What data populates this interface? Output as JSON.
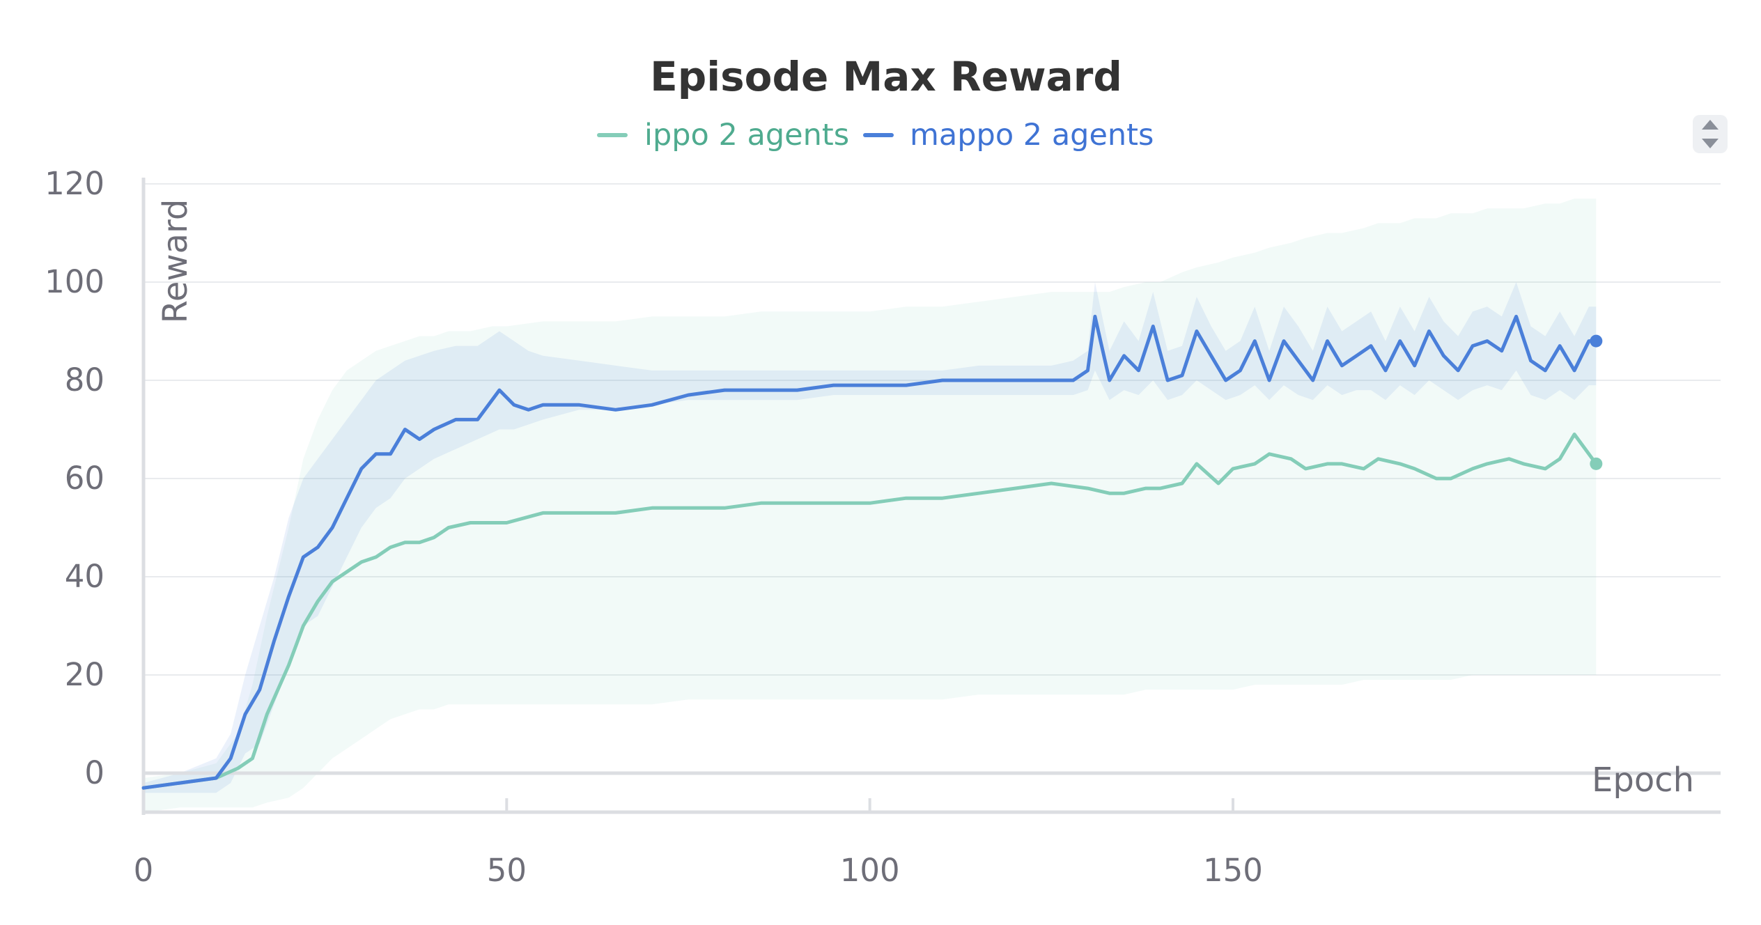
{
  "chart_data": {
    "type": "line",
    "title": "Episode Max Reward",
    "xlabel": "Epoch",
    "ylabel": "Reward",
    "xlim": [
      0,
      200
    ],
    "ylim": [
      -8,
      122
    ],
    "x_ticks": [
      0,
      50,
      100,
      150
    ],
    "y_ticks": [
      0,
      20,
      40,
      60,
      80,
      100,
      120
    ],
    "legend_position": "top-center",
    "grid": true,
    "colors": {
      "ippo": "#84cdb8",
      "mappo": "#4a7fd9",
      "ippo_legend_text": "#4fab8f",
      "mappo_legend_text": "#3f73d4"
    },
    "series": [
      {
        "name": "ippo 2 agents",
        "x": [
          0,
          5,
          10,
          13,
          15,
          17,
          20,
          22,
          24,
          26,
          28,
          30,
          32,
          34,
          36,
          38,
          40,
          42,
          45,
          48,
          50,
          55,
          60,
          65,
          70,
          75,
          80,
          85,
          90,
          95,
          100,
          105,
          110,
          115,
          120,
          125,
          130,
          133,
          135,
          138,
          140,
          143,
          145,
          148,
          150,
          153,
          155,
          158,
          160,
          163,
          165,
          168,
          170,
          173,
          175,
          178,
          180,
          183,
          185,
          188,
          190,
          193,
          195,
          197,
          200
        ],
        "y": [
          -3,
          -2,
          -1,
          1,
          3,
          12,
          22,
          30,
          35,
          39,
          41,
          43,
          44,
          46,
          47,
          47,
          48,
          50,
          51,
          51,
          51,
          53,
          53,
          53,
          54,
          54,
          54,
          55,
          55,
          55,
          55,
          56,
          56,
          57,
          58,
          59,
          58,
          57,
          57,
          58,
          58,
          59,
          63,
          59,
          62,
          63,
          65,
          64,
          62,
          63,
          63,
          62,
          64,
          63,
          62,
          60,
          60,
          62,
          63,
          64,
          63,
          62,
          64,
          69,
          63
        ],
        "upper": [
          -1,
          0,
          2,
          8,
          18,
          32,
          50,
          64,
          72,
          78,
          82,
          84,
          86,
          87,
          88,
          89,
          89,
          90,
          90,
          91,
          91,
          92,
          92,
          92,
          93,
          93,
          93,
          94,
          94,
          94,
          94,
          95,
          95,
          96,
          97,
          98,
          98,
          98,
          99,
          100,
          100,
          102,
          103,
          104,
          105,
          106,
          107,
          108,
          109,
          110,
          110,
          111,
          112,
          112,
          113,
          113,
          114,
          114,
          115,
          115,
          115,
          116,
          116,
          117,
          117
        ],
        "lower": [
          -8,
          -7,
          -7,
          -7,
          -7,
          -6,
          -5,
          -3,
          0,
          3,
          5,
          7,
          9,
          11,
          12,
          13,
          13,
          14,
          14,
          14,
          14,
          14,
          14,
          14,
          14,
          15,
          15,
          15,
          15,
          15,
          15,
          15,
          15,
          16,
          16,
          16,
          16,
          16,
          16,
          17,
          17,
          17,
          17,
          17,
          17,
          18,
          18,
          18,
          18,
          18,
          18,
          19,
          19,
          19,
          19,
          19,
          19,
          20,
          20,
          20,
          20,
          20,
          20,
          20,
          20
        ]
      },
      {
        "name": "mappo 2 agents",
        "x": [
          0,
          5,
          10,
          12,
          14,
          16,
          18,
          20,
          22,
          24,
          26,
          28,
          30,
          32,
          34,
          36,
          38,
          40,
          43,
          46,
          49,
          51,
          53,
          55,
          60,
          65,
          70,
          75,
          80,
          85,
          90,
          95,
          100,
          105,
          110,
          115,
          120,
          125,
          128,
          130,
          131,
          133,
          135,
          137,
          139,
          141,
          143,
          145,
          147,
          149,
          151,
          153,
          155,
          157,
          159,
          161,
          163,
          165,
          167,
          169,
          171,
          173,
          175,
          177,
          179,
          181,
          183,
          185,
          187,
          189,
          191,
          193,
          195,
          197,
          199,
          200
        ],
        "y": [
          -3,
          -2,
          -1,
          3,
          12,
          17,
          27,
          36,
          44,
          46,
          50,
          56,
          62,
          65,
          65,
          70,
          68,
          70,
          72,
          72,
          78,
          75,
          74,
          75,
          75,
          74,
          75,
          77,
          78,
          78,
          78,
          79,
          79,
          79,
          80,
          80,
          80,
          80,
          80,
          82,
          93,
          80,
          85,
          82,
          91,
          80,
          81,
          90,
          85,
          80,
          82,
          88,
          80,
          88,
          84,
          80,
          88,
          83,
          85,
          87,
          82,
          88,
          83,
          90,
          85,
          82,
          87,
          88,
          86,
          93,
          84,
          82,
          87,
          82,
          88,
          88
        ],
        "upper": [
          -2,
          0,
          3,
          8,
          20,
          30,
          40,
          52,
          60,
          64,
          68,
          72,
          76,
          80,
          82,
          84,
          85,
          86,
          87,
          87,
          90,
          88,
          86,
          85,
          84,
          83,
          82,
          82,
          82,
          82,
          82,
          82,
          82,
          82,
          82,
          83,
          83,
          83,
          84,
          86,
          100,
          86,
          92,
          88,
          98,
          86,
          87,
          97,
          91,
          86,
          88,
          95,
          86,
          95,
          91,
          86,
          95,
          90,
          92,
          94,
          88,
          95,
          90,
          97,
          92,
          89,
          94,
          95,
          93,
          100,
          91,
          89,
          94,
          89,
          95,
          95
        ],
        "lower": [
          -4,
          -4,
          -4,
          -2,
          4,
          6,
          14,
          22,
          30,
          32,
          38,
          44,
          50,
          54,
          56,
          60,
          62,
          64,
          66,
          68,
          70,
          70,
          71,
          72,
          74,
          74,
          75,
          76,
          76,
          76,
          76,
          77,
          77,
          77,
          77,
          77,
          77,
          77,
          77,
          78,
          82,
          76,
          78,
          77,
          80,
          76,
          77,
          80,
          78,
          76,
          77,
          79,
          76,
          79,
          77,
          76,
          79,
          77,
          78,
          78,
          76,
          79,
          77,
          80,
          78,
          76,
          78,
          79,
          78,
          82,
          77,
          76,
          78,
          76,
          79,
          79
        ]
      }
    ]
  }
}
